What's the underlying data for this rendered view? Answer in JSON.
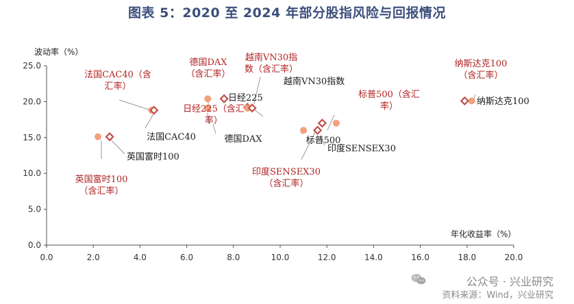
{
  "title": "图表 5：2020 至 2024 年部分股指风险与回报情况",
  "watermark": "公众号 · 兴业研究",
  "source": "资料来源：Wind，兴业研究",
  "colors": {
    "title": "#3c4f7c",
    "incl_fx_point": "#f4a07c",
    "incl_fx_label": "#b22222",
    "excl_fx_point": "#c0504d",
    "axis": "#4f4f4f"
  },
  "chart_data": {
    "type": "scatter",
    "xlabel": "年化收益率（%）",
    "ylabel": "波动率（%）",
    "xlim": [
      0,
      20
    ],
    "ylim": [
      0,
      25
    ],
    "x_ticks": [
      "0.0",
      "2.0",
      "4.0",
      "6.0",
      "8.0",
      "10.0",
      "12.0",
      "14.0",
      "16.0",
      "18.0",
      "20.0"
    ],
    "y_ticks": [
      "0.0",
      "5.0",
      "10.0",
      "15.0",
      "20.0",
      "25.0"
    ],
    "grid": false,
    "points": [
      {
        "name": "法国CAC40（含汇率）",
        "x": 4.5,
        "y": 18.8,
        "style": "incl_fx"
      },
      {
        "name": "法国CAC40",
        "x": 4.6,
        "y": 18.8,
        "style": "excl_fx"
      },
      {
        "name": "德国DAX（含汇率）",
        "x": 6.9,
        "y": 20.4,
        "style": "incl_fx"
      },
      {
        "name": "德国DAX",
        "x": 7.6,
        "y": 20.4,
        "style": "excl_fx"
      },
      {
        "name": "日经225（含汇率）",
        "x": 6.9,
        "y": 19.1,
        "style": "incl_fx"
      },
      {
        "name": "日经225",
        "x": 8.6,
        "y": 19.2,
        "style": "excl_fx"
      },
      {
        "name": "越南VN30指数（含汇率）",
        "x": 8.6,
        "y": 19.1,
        "style": "incl_fx"
      },
      {
        "name": "越南VN30指数",
        "x": 8.8,
        "y": 19.1,
        "style": "excl_fx"
      },
      {
        "name": "英国富时100（含汇率）",
        "x": 2.2,
        "y": 15.1,
        "style": "incl_fx"
      },
      {
        "name": "英国富时100",
        "x": 2.7,
        "y": 15.1,
        "style": "excl_fx"
      },
      {
        "name": "印度SENSEX30（含汇率）",
        "x": 11.0,
        "y": 16.0,
        "style": "incl_fx"
      },
      {
        "name": "印度SENSEX30",
        "x": 11.6,
        "y": 16.0,
        "style": "excl_fx"
      },
      {
        "name": "标普500（含汇率）",
        "x": 12.4,
        "y": 17.0,
        "style": "incl_fx"
      },
      {
        "name": "标普500",
        "x": 11.8,
        "y": 17.0,
        "style": "excl_fx"
      },
      {
        "name": "纳斯达克100（含汇率）",
        "x": 18.2,
        "y": 20.1,
        "style": "incl_fx"
      },
      {
        "name": "纳斯达克100",
        "x": 17.9,
        "y": 20.1,
        "style": "excl_fx"
      }
    ],
    "annotations": [
      {
        "lines": [
          "法国CAC40（含",
          "汇率）"
        ],
        "style": "incl_fx",
        "anchor": "middle"
      },
      {
        "lines": [
          "德国DAX",
          "（含汇率）"
        ],
        "style": "incl_fx",
        "anchor": "middle"
      },
      {
        "lines": [
          "越南VN30指",
          "数（含汇率）"
        ],
        "style": "incl_fx",
        "anchor": "middle"
      },
      {
        "lines": [
          "日经225（含汇",
          "率）"
        ],
        "style": "incl_fx",
        "anchor": "middle"
      },
      {
        "lines": [
          "日经225"
        ],
        "style": "excl_fx",
        "anchor": "start"
      },
      {
        "lines": [
          "越南VN30指数"
        ],
        "style": "excl_fx",
        "anchor": "start"
      },
      {
        "lines": [
          "标普500（含汇",
          "率）"
        ],
        "style": "incl_fx",
        "anchor": "middle"
      },
      {
        "lines": [
          "纳斯达克100",
          "（含汇率）"
        ],
        "style": "incl_fx",
        "anchor": "middle"
      },
      {
        "lines": [
          "纳斯达克100"
        ],
        "style": "excl_fx",
        "anchor": "start"
      },
      {
        "lines": [
          "法国CAC40"
        ],
        "style": "excl_fx",
        "anchor": "middle"
      },
      {
        "lines": [
          "德国DAX"
        ],
        "style": "excl_fx",
        "anchor": "middle"
      },
      {
        "lines": [
          "标普500"
        ],
        "style": "excl_fx",
        "anchor": "middle"
      },
      {
        "lines": [
          "印度SENSEX30"
        ],
        "style": "excl_fx",
        "anchor": "start"
      },
      {
        "lines": [
          "英国富时100"
        ],
        "style": "excl_fx",
        "anchor": "start"
      },
      {
        "lines": [
          "英国富时100",
          "（含汇率）"
        ],
        "style": "incl_fx",
        "anchor": "middle"
      },
      {
        "lines": [
          "印度SENSEX30",
          "（含汇率）"
        ],
        "style": "incl_fx",
        "anchor": "middle"
      }
    ]
  }
}
